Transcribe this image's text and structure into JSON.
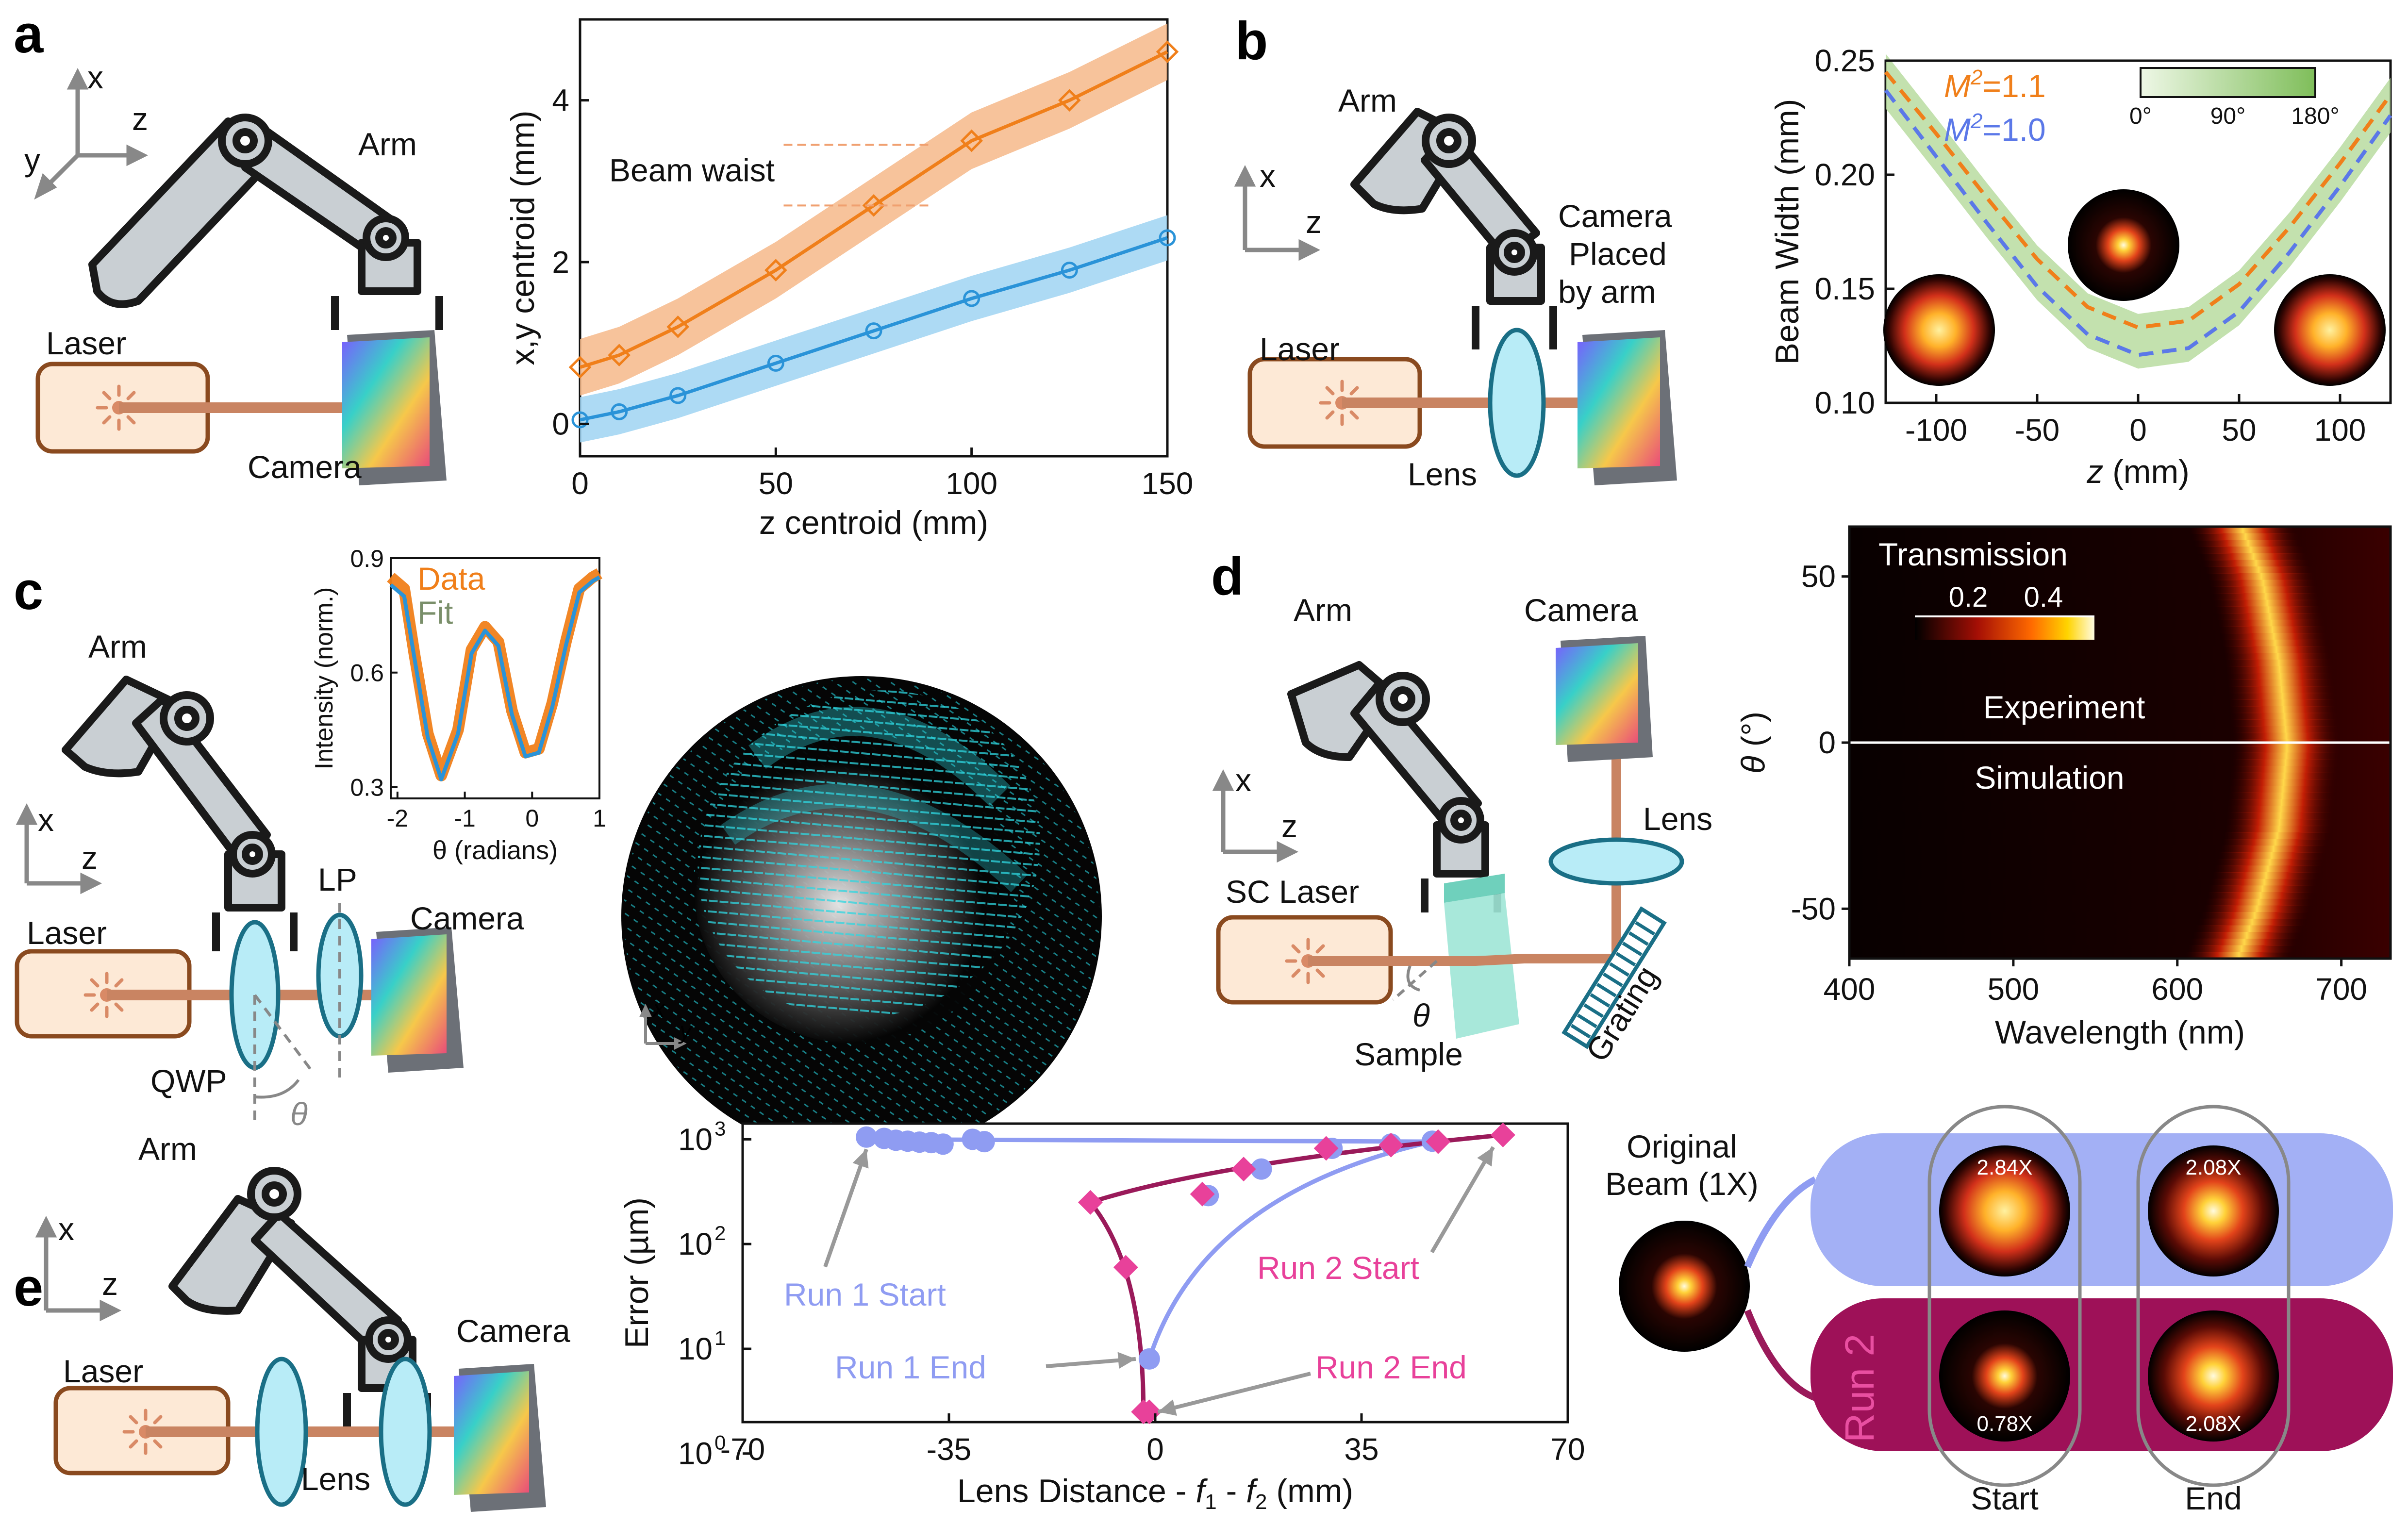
{
  "panels": {
    "a": {
      "label": "a",
      "arm": "Arm",
      "laser": "Laser",
      "camera": "Camera",
      "axes": {
        "x": "x",
        "y": "y",
        "z": "z"
      }
    },
    "b": {
      "label": "b",
      "arm": "Arm",
      "laser": "Laser",
      "lens": "Lens",
      "camera_l1": "Camera",
      "camera_l2": "Placed",
      "camera_l3": "by arm",
      "axes": {
        "x": "x",
        "z": "z"
      }
    },
    "c": {
      "label": "c",
      "arm": "Arm",
      "laser": "Laser",
      "camera": "Camera",
      "lp": "LP",
      "qwp": "QWP",
      "theta": "θ",
      "axes": {
        "x": "x",
        "z": "z"
      },
      "map_axes": {
        "x": "x",
        "y": "y"
      }
    },
    "d": {
      "label": "d",
      "arm": "Arm",
      "camera": "Camera",
      "lens": "Lens",
      "laser": "SC Laser",
      "sample": "Sample",
      "grating": "Grating",
      "theta": "θ",
      "axes": {
        "x": "x",
        "z": "z"
      }
    },
    "e": {
      "label": "e",
      "arm": "Arm",
      "laser": "Laser",
      "lens": "Lens",
      "camera": "Camera",
      "axes": {
        "x": "x",
        "z": "z"
      },
      "original_l1": "Original",
      "original_l2": "Beam (1X)",
      "run2_label": "Run 2",
      "run1_start_mag": "2.84X",
      "run1_end_mag": "2.08X",
      "run2_start_mag": "0.78X",
      "run2_end_mag": "2.08X",
      "start": "Start",
      "end": "End"
    }
  },
  "colors": {
    "orange": "#f07f1a",
    "blue": "#2a93d8",
    "blue_light": "#9fd3f2",
    "orange_light": "#f6b98a",
    "green_band": "#b9dca0",
    "m2_orange": "#f07f1a",
    "m2_blue": "#5b78e8",
    "run1": "#8f9cf2",
    "run2": "#e8419a",
    "run2_dark": "#9a1a5a",
    "laser_box": "#fde9d6",
    "laser_border": "#8a4a1f",
    "beam": "#c98462",
    "lens": "#b8ecf7",
    "arm": "#c9cfd3"
  },
  "chart_data": [
    {
      "id": "a",
      "type": "line",
      "xlabel": "z centroid (mm)",
      "ylabel": "x,y centroid (mm)",
      "xlim": [
        0,
        150
      ],
      "ylim": [
        -0.4,
        5
      ],
      "xticks": [
        "0",
        "50",
        "100",
        "150"
      ],
      "yticks": [
        "0",
        "2",
        "4"
      ],
      "annotation": "Beam waist",
      "series": [
        {
          "x": [
            0,
            10,
            25,
            50,
            75,
            100,
            125,
            150
          ],
          "y": [
            0.7,
            0.85,
            1.2,
            1.9,
            2.7,
            3.5,
            4.0,
            4.6
          ]
        },
        {
          "x": [
            0,
            10,
            25,
            50,
            75,
            100,
            125,
            150
          ],
          "y": [
            0.05,
            0.15,
            0.35,
            0.75,
            1.15,
            1.55,
            1.9,
            2.3
          ]
        }
      ]
    },
    {
      "id": "b",
      "type": "line",
      "xlabel": "z (mm)",
      "ylabel": "Beam Width (mm)",
      "xlim": [
        -125,
        125
      ],
      "ylim": [
        0.1,
        0.25
      ],
      "xticks": [
        "-100",
        "-50",
        "0",
        "50",
        "100"
      ],
      "yticks": [
        "0.10",
        "0.15",
        "0.20",
        "0.25"
      ],
      "legend": "top-left",
      "series": [
        {
          "name": "M2=1.1",
          "name_base": "M",
          "name_sup": "2",
          "name_rest": "=1.1",
          "x": [
            -125,
            -100,
            -75,
            -50,
            -25,
            0,
            25,
            50,
            75,
            100,
            125
          ],
          "y": [
            0.245,
            0.218,
            0.19,
            0.163,
            0.142,
            0.133,
            0.136,
            0.152,
            0.177,
            0.205,
            0.235
          ]
        },
        {
          "name": "M2=1.0",
          "name_base": "M",
          "name_sup": "2",
          "name_rest": "=1.0",
          "x": [
            -125,
            -100,
            -75,
            -50,
            -25,
            0,
            25,
            50,
            75,
            100,
            125
          ],
          "y": [
            0.237,
            0.208,
            0.179,
            0.151,
            0.13,
            0.121,
            0.124,
            0.14,
            0.166,
            0.195,
            0.226
          ]
        }
      ],
      "colorbar": {
        "labels": [
          "0°",
          "90°",
          "180°"
        ]
      }
    },
    {
      "id": "c_inset",
      "type": "line",
      "xlabel": "θ (radians)",
      "ylabel": "Intensity (norm.)",
      "xlim": [
        -2.1,
        1.0
      ],
      "ylim": [
        0.27,
        0.9
      ],
      "xticks": [
        "-2",
        "-1",
        "0",
        "1"
      ],
      "yticks": [
        "0.3",
        "0.6",
        "0.9"
      ],
      "legend": "top-left",
      "series": [
        {
          "name": "Data",
          "x": [
            -2.1,
            -1.9,
            -1.75,
            -1.55,
            -1.35,
            -1.1,
            -0.9,
            -0.7,
            -0.5,
            -0.3,
            -0.1,
            0.1,
            0.3,
            0.5,
            0.7,
            0.9,
            1.0
          ],
          "y": [
            0.85,
            0.82,
            0.65,
            0.44,
            0.33,
            0.45,
            0.66,
            0.72,
            0.68,
            0.5,
            0.39,
            0.4,
            0.52,
            0.68,
            0.82,
            0.85,
            0.86
          ]
        },
        {
          "name": "Fit",
          "x": [
            -2.1,
            -1.9,
            -1.75,
            -1.55,
            -1.35,
            -1.1,
            -0.9,
            -0.7,
            -0.5,
            -0.3,
            -0.1,
            0.1,
            0.3,
            0.5,
            0.7,
            0.9,
            1.0
          ],
          "y": [
            0.83,
            0.8,
            0.64,
            0.43,
            0.32,
            0.44,
            0.65,
            0.71,
            0.67,
            0.49,
            0.38,
            0.39,
            0.51,
            0.67,
            0.81,
            0.84,
            0.85
          ]
        }
      ]
    },
    {
      "id": "d",
      "type": "heatmap",
      "xlabel": "Wavelength (nm)",
      "ylabel": "θ (°)",
      "xlim": [
        400,
        730
      ],
      "ylim": [
        -65,
        65
      ],
      "xticks": [
        "400",
        "500",
        "600",
        "700"
      ],
      "yticks": [
        "50",
        "0",
        "-50"
      ],
      "colorbar": {
        "title": "Transmission",
        "labels": [
          "0.2",
          "0.4"
        ]
      },
      "annotations": [
        "Experiment",
        "Simulation"
      ],
      "peak_wavelength_at_theta": {
        "theta": [
          65,
          50,
          25,
          0,
          -25,
          -50,
          -65
        ],
        "wavelength": [
          640,
          652,
          662,
          667,
          662,
          648,
          636
        ]
      }
    },
    {
      "id": "e",
      "type": "scatter",
      "xlabel": "Lens Distance - f1 - f2 (mm)",
      "xlabel_parts": [
        "Lens Distance - ",
        "f",
        "1",
        " - ",
        "f",
        "2",
        " (mm)"
      ],
      "ylabel": "Error (µm)",
      "xlim": [
        -70,
        70
      ],
      "ylim_log": [
        1,
        3.15
      ],
      "xticks": [
        "-70",
        "-35",
        "0",
        "35",
        "70"
      ],
      "yticks": [
        "10",
        "10",
        "10",
        "10"
      ],
      "ytick_exp": [
        "0",
        "1",
        "2",
        "3"
      ],
      "annotations": [
        "Run 1 Start",
        "Run 1 End",
        "Run 2 Start",
        "Run 2 End"
      ],
      "series": [
        {
          "name": "Run 1",
          "x": [
            -49,
            -46,
            -44,
            -42,
            -40,
            -38,
            -36,
            -31,
            -29,
            -1,
            9,
            18,
            30,
            40,
            47
          ],
          "y": [
            1050,
            1020,
            980,
            960,
            940,
            930,
            900,
            1000,
            950,
            8,
            290,
            520,
            820,
            900,
            960
          ]
        },
        {
          "name": "Run 2",
          "x": [
            59,
            48,
            40,
            29,
            15,
            8,
            -1,
            -11,
            -5,
            -2
          ],
          "y": [
            1100,
            950,
            880,
            820,
            520,
            300,
            2.5,
            250,
            60,
            2.5
          ]
        }
      ]
    }
  ]
}
